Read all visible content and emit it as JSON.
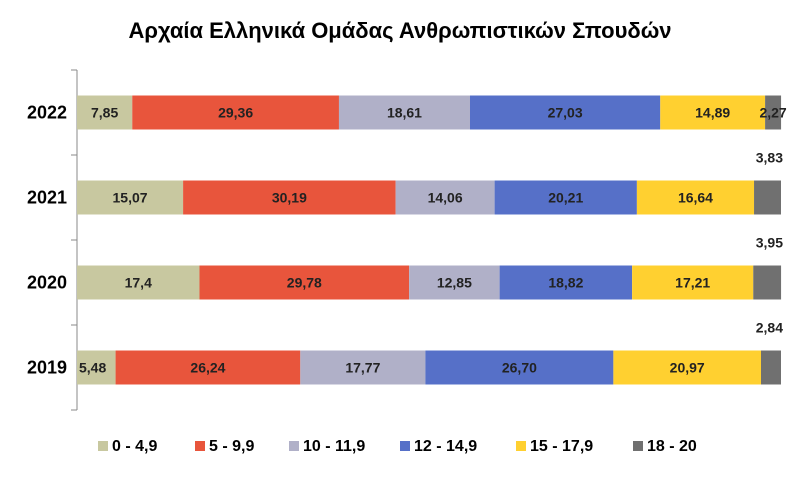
{
  "chart_data": {
    "type": "bar",
    "orientation": "horizontal",
    "stacked": true,
    "title": "Αρχαία Ελληνικά Ομάδας Ανθρωπιστικών Σπουδών",
    "categories": [
      "2022",
      "2021",
      "2020",
      "2019"
    ],
    "series": [
      {
        "name": "0  -  4,9",
        "values": [
          7.85,
          15.07,
          17.4,
          5.48
        ],
        "labels": [
          "7,85",
          "15,07",
          "17,4",
          "5,48"
        ],
        "color": "#c8c8a0"
      },
      {
        "name": "5  - 9,9",
        "values": [
          29.36,
          30.19,
          29.78,
          26.24
        ],
        "labels": [
          "29,36",
          "30,19",
          "29,78",
          "26,24"
        ],
        "color": "#e8553c"
      },
      {
        "name": "10 - 11,9",
        "values": [
          18.61,
          14.06,
          12.85,
          17.77
        ],
        "labels": [
          "18,61",
          "14,06",
          "12,85",
          "17,77"
        ],
        "color": "#b0b0c8"
      },
      {
        "name": "12  - 14,9",
        "values": [
          27.03,
          20.21,
          18.82,
          26.7
        ],
        "labels": [
          "27,03",
          "20,21",
          "18,82",
          "26,70"
        ],
        "color": "#5670c8"
      },
      {
        "name": "15  - 17,9",
        "values": [
          14.89,
          16.64,
          17.21,
          20.97
        ],
        "labels": [
          "14,89",
          "16,64",
          "17,21",
          "20,97"
        ],
        "color": "#ffd030"
      },
      {
        "name": "18  - 20",
        "values": [
          2.27,
          3.83,
          3.95,
          2.84
        ],
        "labels": [
          "2,27",
          "3,83",
          "3,95",
          "2,84"
        ],
        "color": "#707070"
      }
    ],
    "xlim": [
      0,
      100
    ],
    "grid": false,
    "legend_position": "bottom"
  }
}
